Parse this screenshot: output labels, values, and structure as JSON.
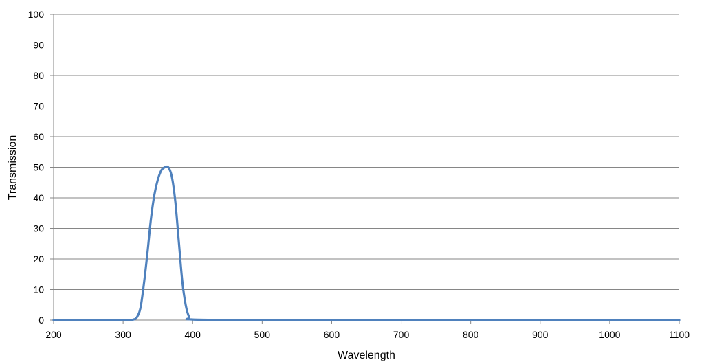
{
  "chart_data": {
    "type": "line",
    "xlabel": "Wavelength",
    "ylabel": "Transmission",
    "xlim": [
      200,
      1100
    ],
    "ylim": [
      0,
      100
    ],
    "xticks": [
      200,
      300,
      400,
      500,
      600,
      700,
      800,
      900,
      1000,
      1100
    ],
    "yticks": [
      0,
      10,
      20,
      30,
      40,
      50,
      60,
      70,
      80,
      90,
      100
    ],
    "grid": "horizontal",
    "series": [
      {
        "color": "#4f81bd",
        "x": [
          200,
          300,
          315,
          320,
          325,
          330,
          335,
          340,
          345,
          350,
          355,
          360,
          365,
          370,
          375,
          380,
          385,
          390,
          395,
          400,
          500,
          600,
          700,
          800,
          900,
          1000,
          1100
        ],
        "y": [
          0,
          0,
          0.2,
          1,
          4,
          12,
          22,
          33,
          41,
          46,
          49,
          50,
          50,
          47,
          39,
          26,
          13,
          5,
          1,
          0.2,
          0,
          0,
          0,
          0,
          0,
          0,
          0
        ]
      }
    ]
  }
}
